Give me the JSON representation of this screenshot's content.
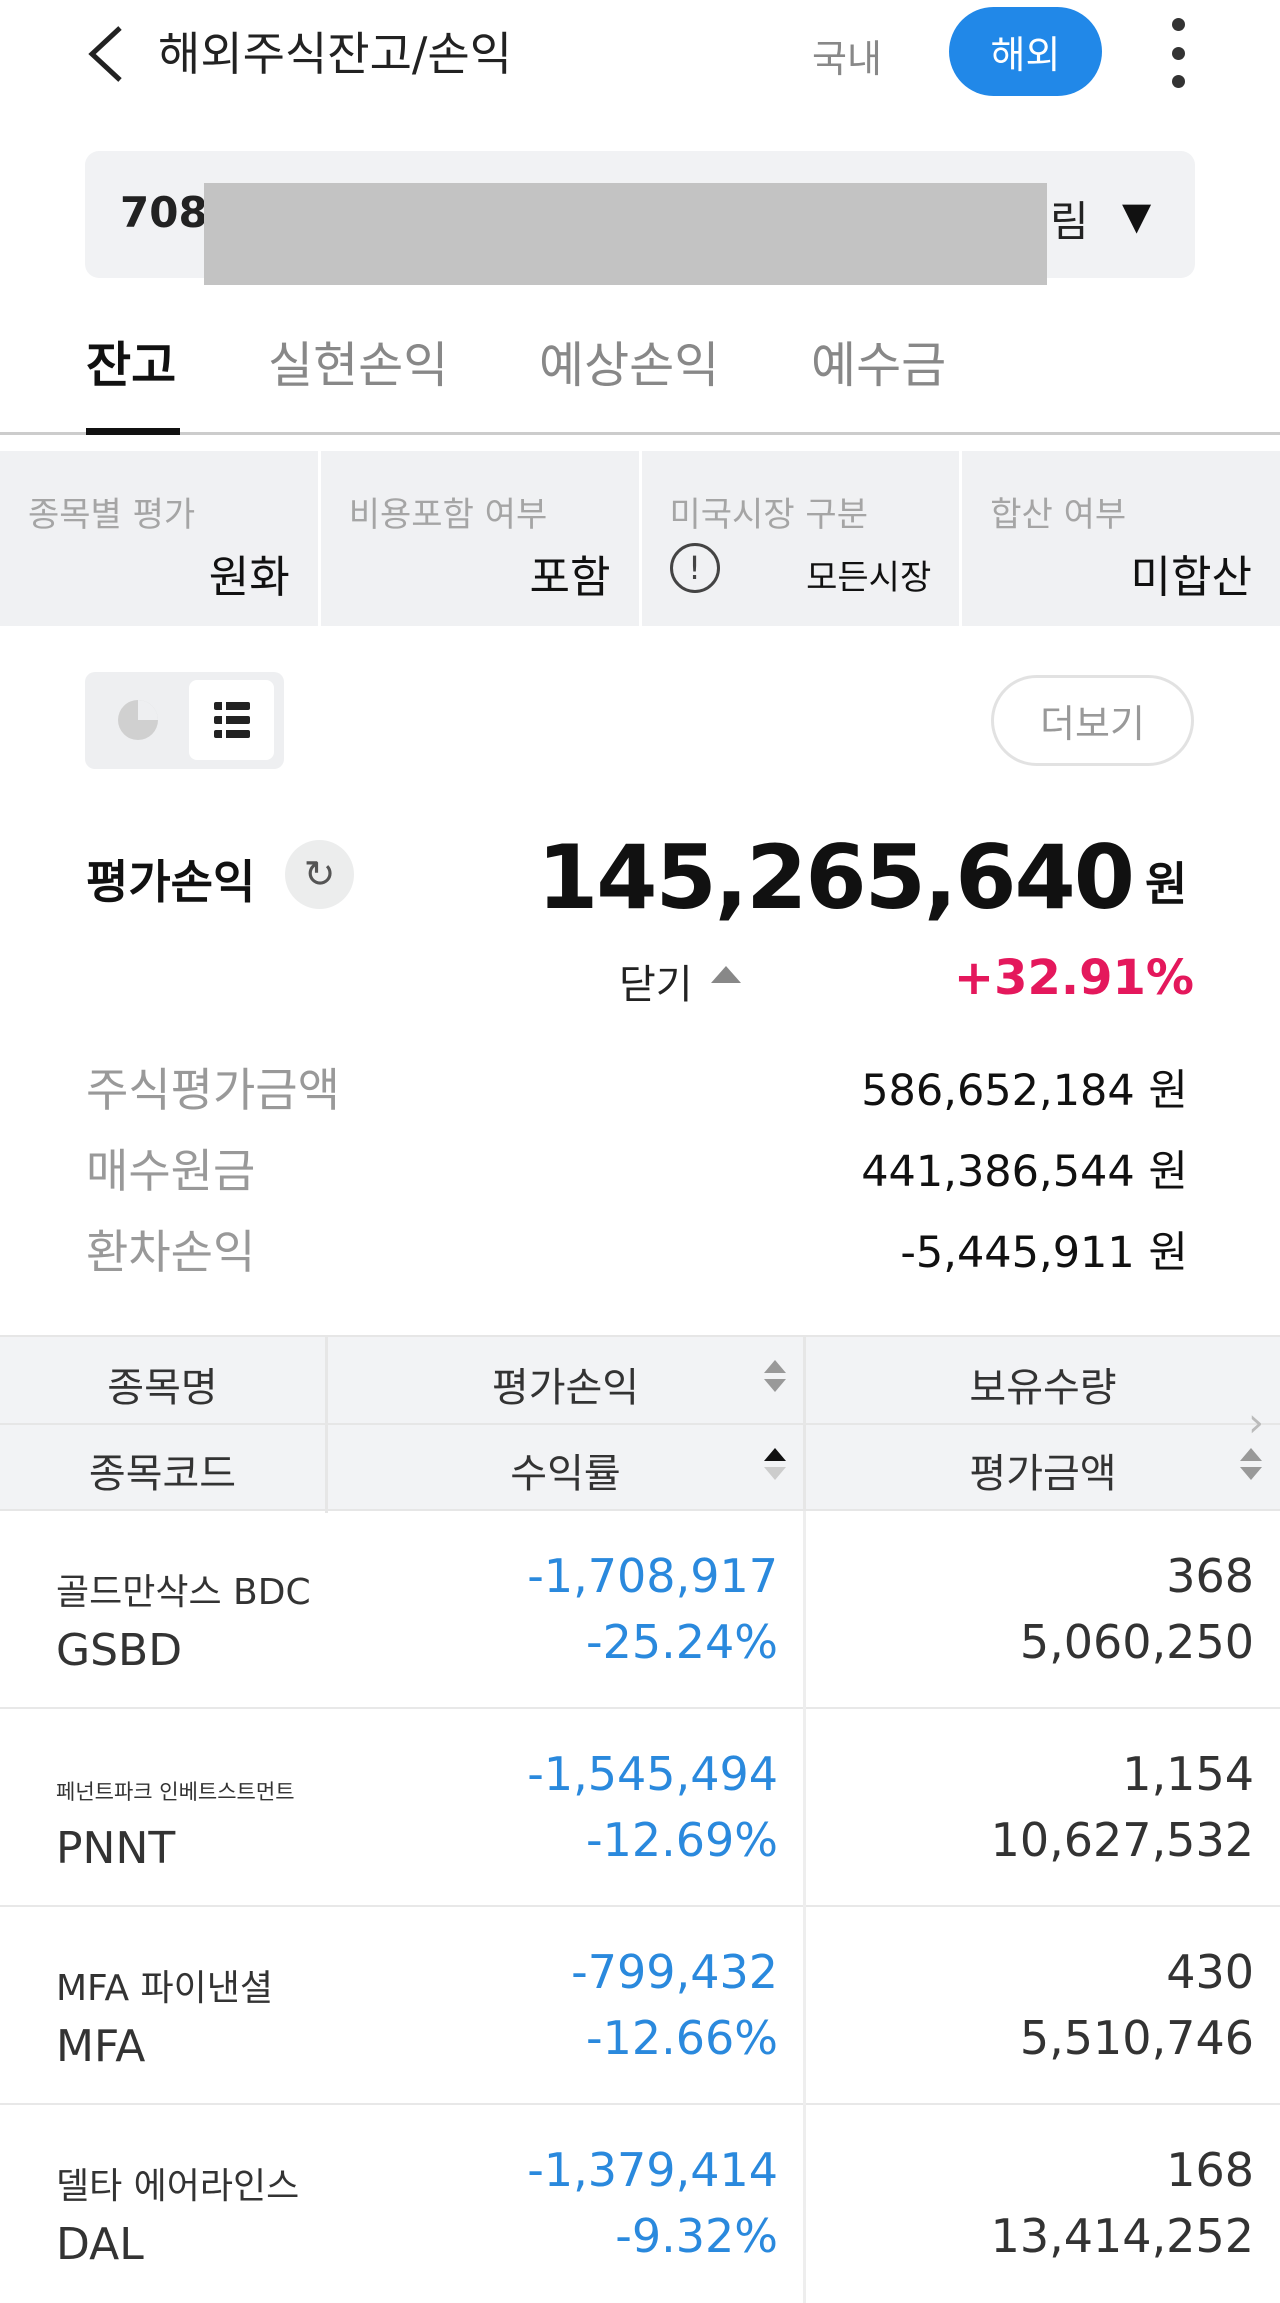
{
  "header": {
    "title": "해외주식잔고/손익",
    "domestic_label": "국내",
    "overseas_label": "해외",
    "accent": "#2188e8"
  },
  "account": {
    "prefix": "708",
    "suffix": "림"
  },
  "tabs": [
    {
      "label": "잔고",
      "active": true
    },
    {
      "label": "실현손익"
    },
    {
      "label": "예상손익"
    },
    {
      "label": "예수금"
    }
  ],
  "filters": [
    {
      "label": "종목별 평가",
      "value": "원화"
    },
    {
      "label": "비용포함 여부",
      "value": "포함"
    },
    {
      "label": "미국시장 구분",
      "value": "모든시장",
      "icon": "info-icon"
    },
    {
      "label": "합산 여부",
      "value": "미합산"
    }
  ],
  "view": {
    "more_label": "더보기"
  },
  "summary": {
    "pl_label": "평가손익",
    "pl_value": "145,265,640",
    "currency": "원",
    "close_label": "닫기",
    "pl_rate": "+32.91%",
    "positive_color": "#e4185c",
    "negative_color": "#2a89dd",
    "rows": [
      {
        "label": "주식평가금액",
        "value": "586,652,184 원"
      },
      {
        "label": "매수원금",
        "value": "441,386,544 원"
      },
      {
        "label": "환차손익",
        "value": "-5,445,911 원"
      }
    ]
  },
  "table": {
    "headers": {
      "name": "종목명",
      "code": "종목코드",
      "pl": "평가손익",
      "rate": "수익률",
      "qty": "보유수량",
      "amount": "평가금액"
    },
    "rows": [
      {
        "name": "골드만삭스 BDC",
        "code": "GSBD",
        "pl": "-1,708,917",
        "rate": "-25.24%",
        "qty": "368",
        "amount": "5,060,250"
      },
      {
        "name": "페넌트파크 인베트스트먼트",
        "code": "PNNT",
        "pl": "-1,545,494",
        "rate": "-12.69%",
        "qty": "1,154",
        "amount": "10,627,532"
      },
      {
        "name": "MFA 파이낸셜",
        "code": "MFA",
        "pl": "-799,432",
        "rate": "-12.66%",
        "qty": "430",
        "amount": "5,510,746"
      },
      {
        "name": "델타 에어라인스",
        "code": "DAL",
        "pl": "-1,379,414",
        "rate": "-9.32%",
        "qty": "168",
        "amount": "13,414,252"
      }
    ]
  }
}
